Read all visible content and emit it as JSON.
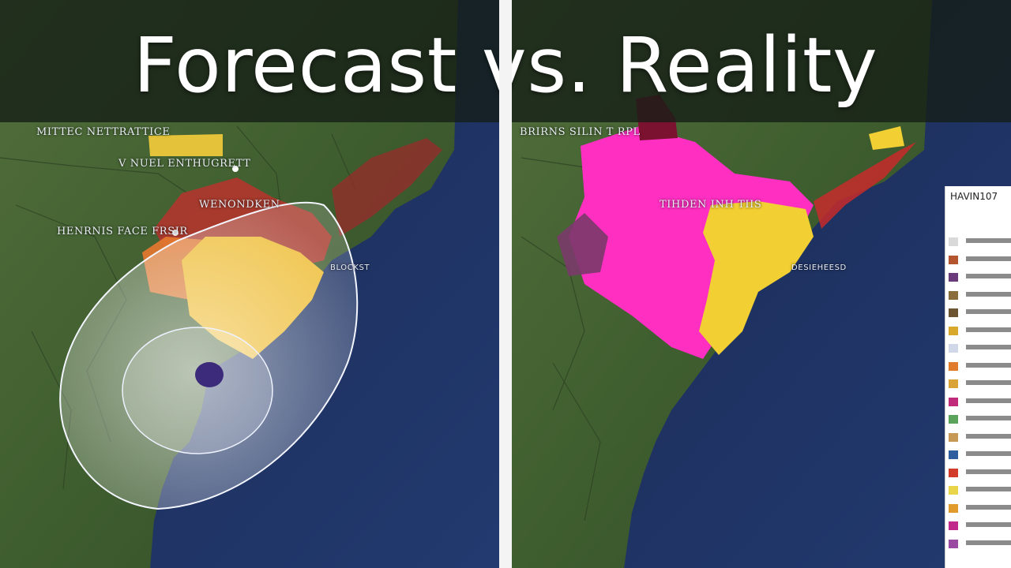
{
  "title": "Forecast vs. Reality",
  "left_panel": {
    "labels": {
      "top": "MITTEC NETTRATTICE",
      "upper": "V NUEL ENTHUGRETT",
      "center": "WENONDKEN",
      "west": "HENRNIS FACE FRSIR",
      "coast": "BLOCKST"
    }
  },
  "right_panel": {
    "labels": {
      "top": "BRIRNS SILIN T RPL",
      "center": "TIHDEN INH TIIS",
      "coast": "DESIEHEESD"
    }
  },
  "legend": {
    "title": "HAVIN107",
    "swatch_colors": [
      "#d9d9d9",
      "#b4552f",
      "#6b3a7a",
      "#8b6d3d",
      "#6c5530",
      "#d8a82a",
      "#cfd7e8",
      "#e07b2a",
      "#d9a335",
      "#c02a7a",
      "#5aa35a",
      "#c69a54",
      "#2e5e9e",
      "#d23a2a",
      "#e9d54a",
      "#e19b2b",
      "#c02a8a",
      "#9a4aa0"
    ]
  },
  "colors": {
    "ocean": "#1d2f5a",
    "land": "#3e5f2e",
    "forecast_red": "#b2362e",
    "forecast_orange": "#e0772f",
    "forecast_yellow": "#edb92a",
    "reality_magenta": "#ff2fc2",
    "reality_yellow": "#f2cf33",
    "divider": "#f4f4f4"
  }
}
